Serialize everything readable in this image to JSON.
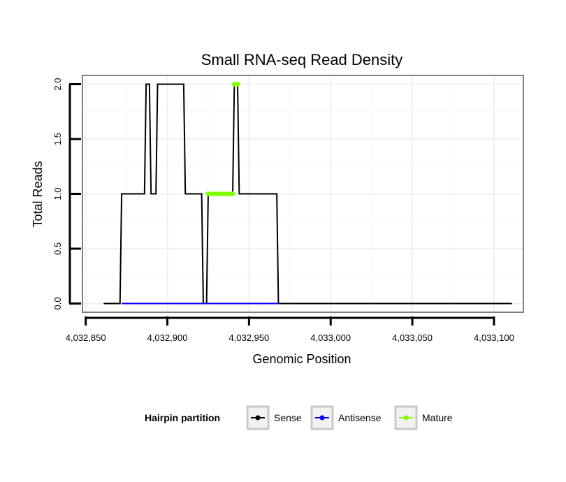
{
  "chart_data": {
    "type": "line",
    "title": "Small RNA-seq Read Density",
    "xlabel": "Genomic Position",
    "ylabel": "Total Reads",
    "xlim": [
      4032848,
      4033118
    ],
    "ylim": [
      -0.08,
      2.08
    ],
    "x_ticks": [
      4032850,
      4032900,
      4032950,
      4033000,
      4033050,
      4033100
    ],
    "x_tick_labels": [
      "4,032,850",
      "4,032,900",
      "4,032,950",
      "4,033,000",
      "4,033,050",
      "4,033,100"
    ],
    "y_ticks": [
      0,
      0.5,
      1,
      1.5,
      2
    ],
    "y_tick_labels": [
      "0.0",
      "0.5",
      "1.0",
      "1.5",
      "2.0"
    ],
    "grid": true,
    "legend": {
      "title": "Hairpin partition",
      "position": "bottom",
      "entries": [
        "Sense",
        "Antisense",
        "Mature"
      ]
    },
    "series": [
      {
        "name": "Sense",
        "color": "#000000",
        "x": [
          4032861,
          4032871,
          4032872,
          4032886,
          4032887,
          4032889,
          4032890,
          4032893,
          4032894,
          4032897,
          4032898,
          4032910,
          4032911,
          4032921,
          4032922,
          4032924,
          4032925,
          4032940,
          4032941,
          4032943,
          4032944,
          4032967,
          4032968,
          4033111
        ],
        "values": [
          0,
          0,
          1,
          1,
          2,
          2,
          1,
          1,
          2,
          2,
          2,
          2,
          1,
          1,
          0,
          0,
          1,
          1,
          2,
          2,
          1,
          1,
          0,
          0
        ]
      },
      {
        "name": "Antisense",
        "color": "#0000ff",
        "x": [
          4032872,
          4032968
        ],
        "values": [
          0,
          0
        ]
      },
      {
        "name": "Mature",
        "color": "#7fff00",
        "segments": [
          {
            "x": [
              4032925,
              4032940
            ],
            "values": [
              1,
              1
            ]
          },
          {
            "x": [
              4032941,
              4032943
            ],
            "values": [
              2,
              2
            ]
          }
        ]
      }
    ]
  }
}
